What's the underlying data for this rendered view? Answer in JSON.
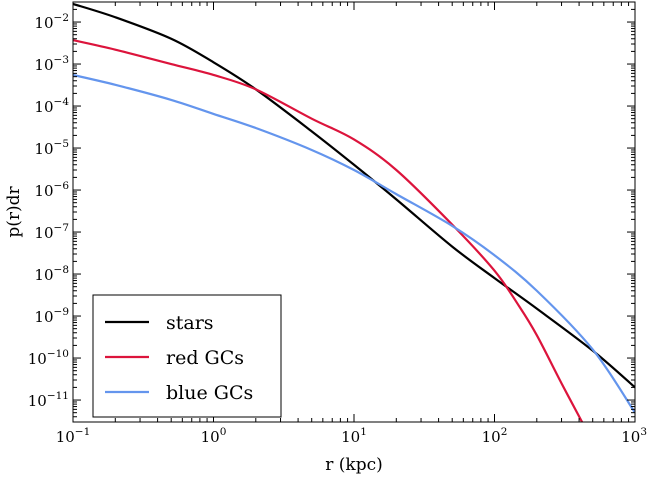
{
  "chart_data": {
    "type": "line",
    "title": "",
    "xlabel": "r (kpc)",
    "ylabel": "p(r)dr",
    "xscale": "log",
    "yscale": "log",
    "xlim": [
      0.1,
      1000
    ],
    "ylim": [
      3e-12,
      0.03
    ],
    "grid": false,
    "legend_position": "bottom-left",
    "x_ticks": [
      {
        "base": "10",
        "exp": "−1",
        "value": 0.1
      },
      {
        "base": "10",
        "exp": "0",
        "value": 1
      },
      {
        "base": "10",
        "exp": "1",
        "value": 10
      },
      {
        "base": "10",
        "exp": "2",
        "value": 100
      },
      {
        "base": "10",
        "exp": "3",
        "value": 1000
      }
    ],
    "y_ticks": [
      {
        "base": "10",
        "exp": "−2",
        "value": 0.01
      },
      {
        "base": "10",
        "exp": "−3",
        "value": 0.001
      },
      {
        "base": "10",
        "exp": "−4",
        "value": 0.0001
      },
      {
        "base": "10",
        "exp": "−5",
        "value": 1e-05
      },
      {
        "base": "10",
        "exp": "−6",
        "value": 1e-06
      },
      {
        "base": "10",
        "exp": "−7",
        "value": 1e-07
      },
      {
        "base": "10",
        "exp": "−8",
        "value": 1e-08
      },
      {
        "base": "10",
        "exp": "−9",
        "value": 1e-09
      },
      {
        "base": "10",
        "exp": "−10",
        "value": 1e-10
      },
      {
        "base": "10",
        "exp": "−11",
        "value": 1e-11
      }
    ],
    "series": [
      {
        "name": "stars",
        "color": "#000000",
        "x": [
          0.1,
          0.2,
          0.5,
          1,
          2,
          5,
          10,
          20,
          50,
          100,
          200,
          500,
          1000
        ],
        "y": [
          0.027,
          0.013,
          0.004,
          0.0011,
          0.00025,
          2.5e-05,
          4e-06,
          6e-07,
          4.5e-08,
          8e-09,
          1.5e-09,
          1.5e-10,
          2e-11
        ]
      },
      {
        "name": "red GCs",
        "color": "#dc143c",
        "x": [
          0.1,
          0.2,
          0.5,
          1,
          2,
          5,
          10,
          20,
          50,
          100,
          150,
          200,
          300,
          420
        ],
        "y": [
          0.0037,
          0.0022,
          0.001,
          0.00055,
          0.00025,
          5e-05,
          1.6e-05,
          3e-06,
          1.5e-07,
          1.2e-08,
          1.7e-09,
          3.5e-10,
          2.5e-11,
          3e-12
        ]
      },
      {
        "name": "blue GCs",
        "color": "#6495ed",
        "x": [
          0.1,
          0.2,
          0.5,
          1,
          2,
          5,
          10,
          20,
          50,
          100,
          200,
          500,
          1000
        ],
        "y": [
          0.00055,
          0.00032,
          0.00014,
          6.5e-05,
          3e-05,
          9e-06,
          3e-06,
          8e-07,
          1.4e-07,
          2.8e-08,
          4e-09,
          1.6e-10,
          5e-12
        ]
      }
    ]
  }
}
